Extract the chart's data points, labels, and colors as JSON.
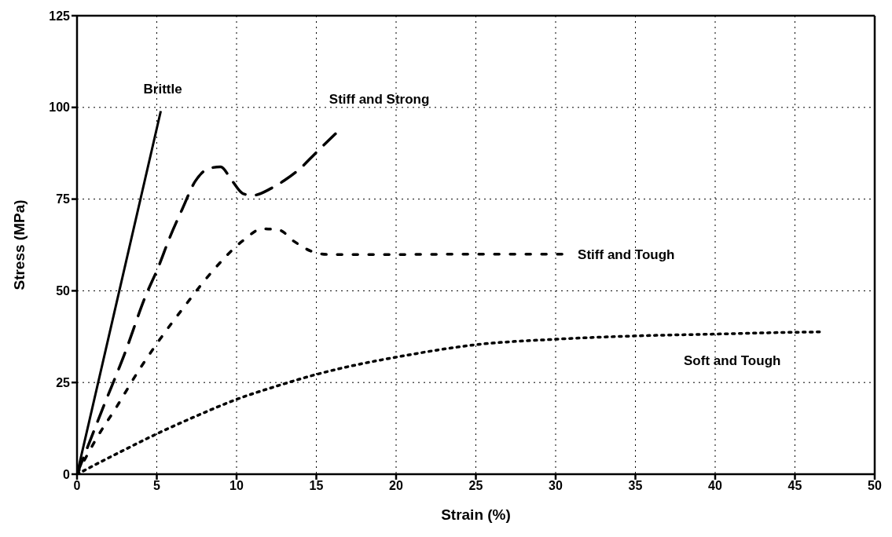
{
  "chart_data": {
    "type": "line",
    "xlabel": "Strain (%)",
    "ylabel": "Stress (MPa)",
    "xlim": [
      0,
      50
    ],
    "xticks": [
      0,
      5,
      10,
      15,
      20,
      25,
      30,
      35,
      40,
      45,
      50
    ],
    "ylim": [
      0,
      125
    ],
    "yticks": [
      0,
      25,
      50,
      75,
      100,
      125
    ],
    "grid": true,
    "legend": false,
    "marker": "none",
    "series": [
      {
        "name": "Brittle",
        "color": "#000000",
        "line_style": "solid",
        "x": [
          0,
          5.25
        ],
        "values": [
          0,
          99
        ]
      },
      {
        "name": "Stiff and Strong",
        "color": "#000000",
        "line_style": "dashed",
        "x": [
          0,
          1.6,
          3,
          4.3,
          5.1,
          5.8,
          6.6,
          7.4,
          8.3,
          9,
          9.7,
          10.4,
          11,
          12.2,
          13,
          14,
          14.9,
          16.2
        ],
        "values": [
          0,
          17.8,
          33,
          48.6,
          56.5,
          64.4,
          72.3,
          79.8,
          83.4,
          83.8,
          80.1,
          76.5,
          76,
          78,
          80.1,
          83.4,
          87.3,
          92.8
        ]
      },
      {
        "name": "Stiff and Tough",
        "color": "#000000",
        "line_style": "dotted",
        "x": [
          0,
          1.2,
          2.5,
          3.8,
          5.2,
          6.8,
          8.5,
          10.5,
          11.6,
          12.7,
          13.6,
          14.8,
          15.8,
          20,
          25,
          30.4
        ],
        "values": [
          0,
          9.6,
          18.5,
          27.8,
          36.8,
          46.1,
          55.4,
          64,
          66.9,
          66.5,
          63.5,
          60.6,
          59.9,
          59.9,
          60,
          60
        ]
      },
      {
        "name": "Soft and Tough",
        "color": "#000000",
        "line_style": "dotted",
        "x": [
          0,
          2.5,
          5,
          7.5,
          10,
          12.5,
          15,
          17.5,
          20,
          25,
          30,
          35,
          40,
          45,
          46.8
        ],
        "values": [
          0,
          5.6,
          11,
          15.9,
          20.4,
          24,
          27.2,
          29.8,
          31.9,
          35.3,
          36.8,
          37.7,
          38.2,
          38.7,
          38.8
        ]
      }
    ]
  }
}
